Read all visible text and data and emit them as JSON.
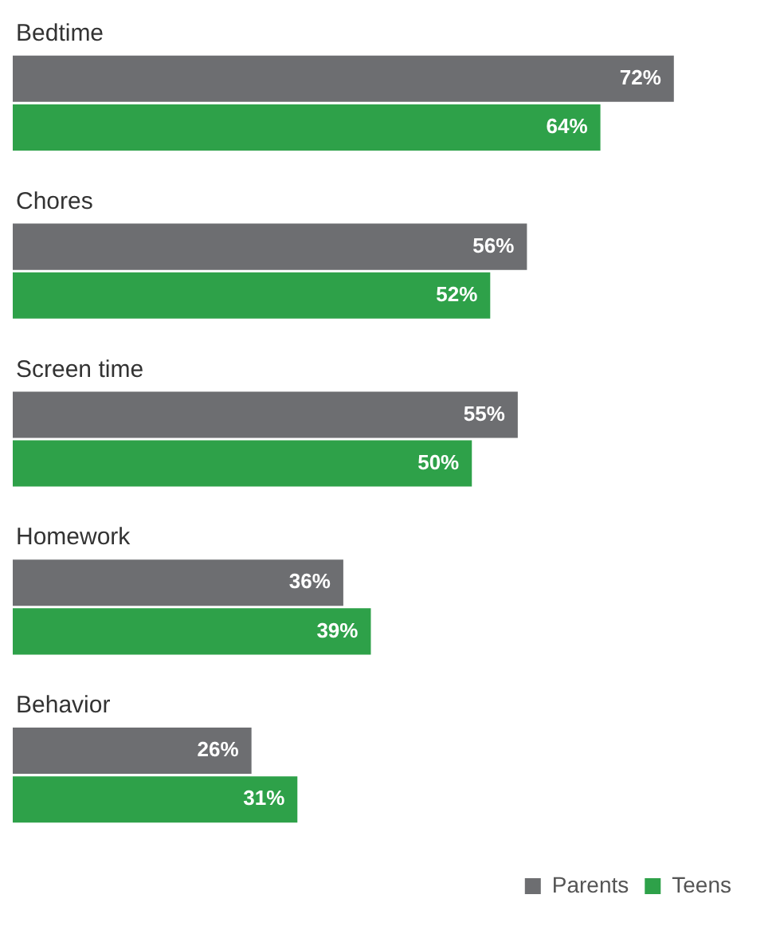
{
  "chart_data": {
    "type": "bar",
    "orientation": "horizontal",
    "categories": [
      "Bedtime",
      "Chores",
      "Screen time",
      "Homework",
      "Behavior"
    ],
    "series": [
      {
        "name": "Parents",
        "color": "#6d6e71",
        "values": [
          72,
          56,
          55,
          36,
          26
        ],
        "value_labels": [
          "72%",
          "56%",
          "55%",
          "36%",
          "26%"
        ]
      },
      {
        "name": "Teens",
        "color": "#2ea149",
        "values": [
          64,
          52,
          50,
          39,
          31
        ],
        "value_labels": [
          "64%",
          "52%",
          "50%",
          "39%",
          "31%"
        ]
      }
    ],
    "legend": "bottom right",
    "tick_labels": false
  }
}
